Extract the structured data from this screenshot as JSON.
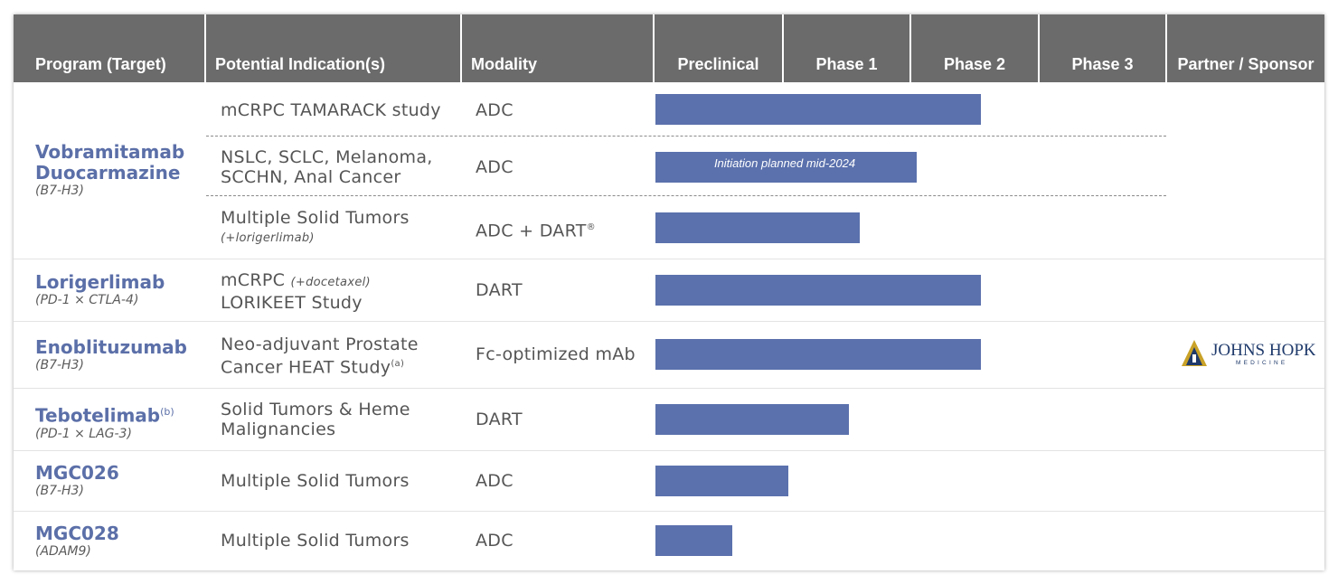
{
  "headers": {
    "program": "Program (Target)",
    "indication": "Potential Indication(s)",
    "modality": "Modality",
    "preclinical": "Preclinical",
    "phase1": "Phase 1",
    "phase2": "Phase 2",
    "phase3": "Phase 3",
    "partner": "Partner / Sponsor"
  },
  "programs": [
    {
      "name_line1": "Vobramitamab",
      "name_line2": "Duocarmazine",
      "target": "(B7-H3)"
    },
    {
      "name": "Lorigerlimab",
      "target": "(PD-1 × CTLA-4)"
    },
    {
      "name": "Enoblituzumab",
      "target": "(B7-H3)"
    },
    {
      "name": "Tebotelimab",
      "footnote": "(b)",
      "target": "(PD-1 × LAG-3)"
    },
    {
      "name": "MGC026",
      "target": "(B7-H3)"
    },
    {
      "name": "MGC028",
      "target": "(ADAM9)"
    }
  ],
  "rows": [
    {
      "indication": "mCRPC TAMARACK study",
      "modality": "ADC"
    },
    {
      "indication_line1": "NSLC, SCLC, Melanoma,",
      "indication_line2": "SCCHN, Anal Cancer",
      "modality": "ADC",
      "bar_note": "Initiation planned mid-2024"
    },
    {
      "indication": "Multiple Solid Tumors",
      "indication_note": "(+lorigerlimab)",
      "modality": "ADC + DART",
      "modality_mark": "®"
    },
    {
      "indication_line1": "mCRPC",
      "indication_note": "(+docetaxel)",
      "indication_line2": "LORIKEET Study",
      "modality": "DART"
    },
    {
      "indication_line1": "Neo-adjuvant Prostate",
      "indication_line2": "Cancer HEAT Study",
      "indication_footnote": "(a)",
      "modality": "Fc-optimized mAb",
      "partner_line1": "JOHNS HOPKINS",
      "partner_line2": "MEDICINE"
    },
    {
      "indication_line1": "Solid Tumors & Heme",
      "indication_line2": "Malignancies",
      "modality": "DART"
    },
    {
      "indication": "Multiple Solid Tumors",
      "modality": "ADC"
    },
    {
      "indication": "Multiple Solid Tumors",
      "modality": "ADC"
    }
  ],
  "chart_data": {
    "type": "bar",
    "orientation": "horizontal",
    "title": "",
    "categories": [
      "Vobramitamab Duocarmazine – mCRPC TAMARACK study",
      "Vobramitamab Duocarmazine – NSLC, SCLC, Melanoma, SCCHN, Anal Cancer",
      "Vobramitamab Duocarmazine – Multiple Solid Tumors (+lorigerlimab)",
      "Lorigerlimab – mCRPC (+docetaxel) LORIKEET Study",
      "Enoblituzumab – Neo-adjuvant Prostate Cancer HEAT Study",
      "Tebotelimab – Solid Tumors & Heme Malignancies",
      "MGC026 – Multiple Solid Tumors",
      "MGC028 – Multiple Solid Tumors"
    ],
    "values": [
      2.55,
      2.05,
      1.6,
      2.55,
      2.55,
      1.52,
      1.04,
      0.6
    ],
    "stages": [
      "Preclinical",
      "Phase 1",
      "Phase 2",
      "Phase 3"
    ],
    "xlim": [
      0,
      4
    ],
    "annotations": [
      {
        "row": 1,
        "text": "Initiation planned mid-2024"
      }
    ],
    "colors": {
      "bar": "#5b71ad",
      "header": "#6b6b6b",
      "program": "#5b6fa8"
    }
  }
}
